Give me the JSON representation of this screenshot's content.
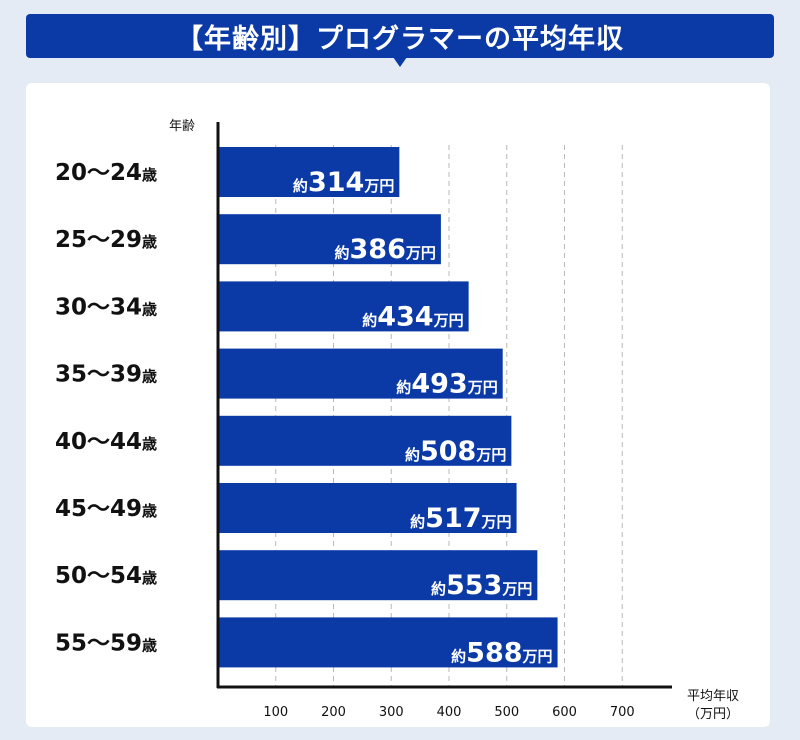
{
  "title": "【年齢別】プログラマーの平均年収",
  "chart_data": {
    "type": "bar",
    "orientation": "horizontal",
    "title": "【年齢別】プログラマーの平均年収",
    "ylabel": "年齢",
    "xlabel": "平均年収",
    "xunit": "（万円）",
    "categories": [
      {
        "range": "20〜24",
        "unit": "歳"
      },
      {
        "range": "25〜29",
        "unit": "歳"
      },
      {
        "range": "30〜34",
        "unit": "歳"
      },
      {
        "range": "35〜39",
        "unit": "歳"
      },
      {
        "range": "40〜44",
        "unit": "歳"
      },
      {
        "range": "45〜49",
        "unit": "歳"
      },
      {
        "range": "50〜54",
        "unit": "歳"
      },
      {
        "range": "55〜59",
        "unit": "歳"
      }
    ],
    "values": [
      314,
      386,
      434,
      493,
      508,
      517,
      553,
      588
    ],
    "value_prefix": "約",
    "value_suffix": "万円",
    "xlim": [
      0,
      780
    ],
    "xticks": [
      100,
      200,
      300,
      400,
      500,
      600,
      700
    ],
    "grid": "dashed-vertical",
    "colors": {
      "bar": "#0b3aa6",
      "label": "#ffffff",
      "grid": "#b8b8b8"
    }
  }
}
